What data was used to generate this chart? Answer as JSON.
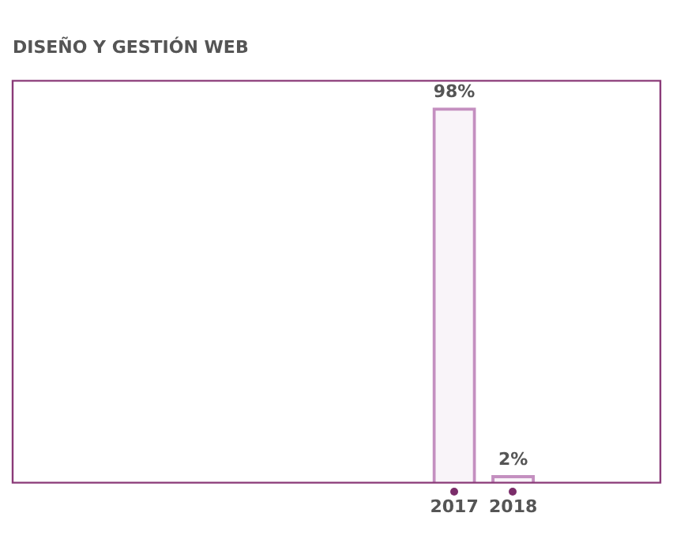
{
  "chart_data": {
    "type": "bar",
    "title": "DISEÑO Y GESTIÓN WEB",
    "categories": [
      null,
      null,
      null,
      null,
      null,
      null,
      null,
      "2017",
      "2018",
      null,
      null
    ],
    "values": [
      null,
      null,
      null,
      null,
      null,
      null,
      null,
      98,
      2,
      null,
      null
    ],
    "value_labels": [
      null,
      null,
      null,
      null,
      null,
      null,
      null,
      "98%",
      "2%",
      null,
      null
    ],
    "color": "#c48fc0",
    "ylim": [
      0,
      105
    ],
    "tick_labels": "x",
    "grid": false,
    "legend": false
  }
}
